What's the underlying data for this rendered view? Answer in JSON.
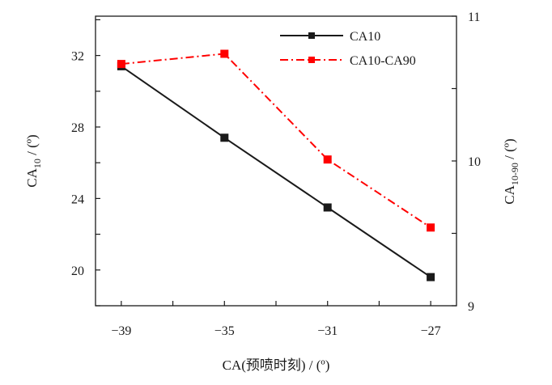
{
  "chart_data": {
    "type": "line",
    "x_axis": {
      "label": "CA(预喷时刻) / (º)",
      "ticks": [
        -39,
        -35,
        -31,
        -27
      ],
      "range": [
        -40,
        -26
      ]
    },
    "y_left": {
      "label_main": "CA",
      "label_sub": "10",
      "label_unit": " / (º)",
      "ticks": [
        20,
        24,
        28,
        32
      ],
      "range": [
        18,
        34.2
      ]
    },
    "y_right": {
      "label_main": "CA",
      "label_sub": "10-90",
      "label_unit": " / (º)",
      "ticks": [
        9,
        10,
        11
      ],
      "range": [
        9,
        11
      ]
    },
    "grid": false,
    "legend_position": "top-right",
    "series": [
      {
        "name": "CA10",
        "axis": "left",
        "color": "#1a1a1a",
        "x": [
          -39,
          -35,
          -31,
          -27
        ],
        "y": [
          31.4,
          27.4,
          23.5,
          19.6
        ]
      },
      {
        "name": "CA10-CA90",
        "axis": "right",
        "color": "#ff0000",
        "x": [
          -39,
          -35,
          -31,
          -27
        ],
        "y": [
          10.67,
          10.74,
          10.01,
          9.54
        ]
      }
    ]
  }
}
